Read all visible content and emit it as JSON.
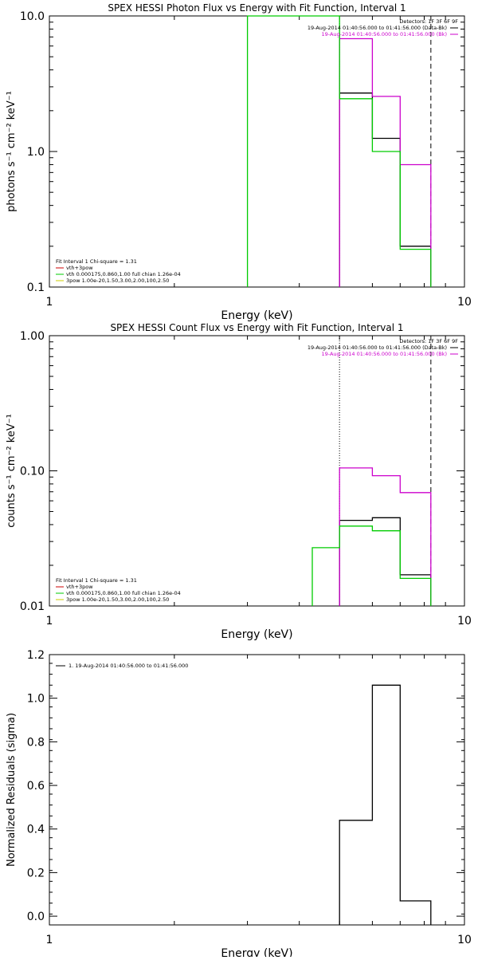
{
  "chart_data": [
    {
      "type": "line",
      "title": "SPEX HESSI Photon Flux vs Energy with Fit Function, Interval 1",
      "xlabel": "Energy (keV)",
      "ylabel": "photons s⁻¹ cm⁻² keV⁻¹",
      "xscale": "log",
      "yscale": "log",
      "xlim": [
        1,
        10
      ],
      "ylim": [
        0.1,
        10.0
      ],
      "xticks": [
        {
          "v": 1,
          "t": "1"
        },
        {
          "v": 10,
          "t": "10"
        }
      ],
      "yticks": [
        {
          "v": 0.1,
          "t": "0.1"
        },
        {
          "v": 1.0,
          "t": "1.0"
        },
        {
          "v": 10.0,
          "t": "10.0"
        }
      ],
      "legend_top_right": {
        "header": "Detectors: 1F 3F 6F 9F",
        "entries": [
          {
            "text": "19-Aug-2014 01:40:56.000 to 01:41:56.000 (Data-Bk)",
            "color": "#000000"
          },
          {
            "text": "19-Aug-2014 01:40:56.000 to 01:41:56.000 (Bk)",
            "color": "#cc00cc"
          }
        ]
      },
      "legend_bottom_left": {
        "header": "Fit Interval 1    Chi-square = 1.31",
        "entries": [
          {
            "text": "vth+3pow",
            "color": "#cc0000"
          },
          {
            "text": "vth 0.000175,0.860,1.00  full chian 1.26e-04",
            "color": "#00cc00"
          },
          {
            "text": "3pow 1.00e-20,1.50,3.00,2.00,100,2.50",
            "color": "#cccc00"
          }
        ]
      },
      "vlines": [
        {
          "x": 5.0,
          "style": "dotted",
          "color": "#000000"
        },
        {
          "x": 8.3,
          "style": "dashed",
          "color": "#000000"
        }
      ],
      "series": [
        {
          "name": "19-Aug-2014 01:40:56.000 to 01:41:56.000 (Data-Bk)",
          "color": "#000000",
          "bins": [
            [
              5.0,
              6.0,
              2.7
            ],
            [
              6.0,
              7.0,
              1.25
            ],
            [
              7.0,
              8.3,
              0.2
            ]
          ]
        },
        {
          "name": "19-Aug-2014 01:40:56.000 to 01:41:56.000 (Bk)",
          "color": "#cc00cc",
          "bins": [
            [
              5.0,
              6.0,
              6.8
            ],
            [
              6.0,
              7.0,
              2.55
            ],
            [
              7.0,
              8.3,
              0.8
            ]
          ]
        },
        {
          "name": "vth 0.000175,0.860,1.00  full chian 1.26e-04",
          "color": "#00cc00",
          "bins": [
            [
              3.0,
              5.0,
              10.0
            ],
            [
              5.0,
              6.0,
              2.45
            ],
            [
              6.0,
              7.0,
              1.0
            ],
            [
              7.0,
              8.3,
              0.19
            ]
          ]
        }
      ]
    },
    {
      "type": "line",
      "title": "SPEX HESSI Count Flux vs Energy with Fit Function, Interval 1",
      "xlabel": "Energy (keV)",
      "ylabel": "counts s⁻¹ cm⁻² keV⁻¹",
      "xscale": "log",
      "yscale": "log",
      "xlim": [
        1,
        10
      ],
      "ylim": [
        0.01,
        1.0
      ],
      "xticks": [
        {
          "v": 1,
          "t": "1"
        },
        {
          "v": 10,
          "t": "10"
        }
      ],
      "yticks": [
        {
          "v": 0.01,
          "t": "0.01"
        },
        {
          "v": 0.1,
          "t": "0.10"
        },
        {
          "v": 1.0,
          "t": "1.00"
        }
      ],
      "legend_top_right": {
        "header": "Detectors: 1F 3F 6F 9F",
        "entries": [
          {
            "text": "19-Aug-2014 01:40:56.000 to 01:41:56.000 (Data-Bk)",
            "color": "#000000"
          },
          {
            "text": "19-Aug-2014 01:40:56.000 to 01:41:56.000 (Bk)",
            "color": "#cc00cc"
          }
        ]
      },
      "legend_bottom_left": {
        "header": "Fit Interval 1    Chi-square = 1.31",
        "entries": [
          {
            "text": "vth+3pow",
            "color": "#cc0000"
          },
          {
            "text": "vth 0.000175,0.860,1.00  full chian 1.26e-04",
            "color": "#00cc00"
          },
          {
            "text": "3pow 1.00e-20,1.50,3.00,2.00,100,2.50",
            "color": "#cccc00"
          }
        ]
      },
      "vlines": [
        {
          "x": 5.0,
          "style": "dotted",
          "color": "#000000"
        },
        {
          "x": 8.3,
          "style": "dashed",
          "color": "#000000"
        }
      ],
      "series": [
        {
          "name": "19-Aug-2014 01:40:56.000 to 01:41:56.000 (Data-Bk)",
          "color": "#000000",
          "bins": [
            [
              5.0,
              6.0,
              0.043
            ],
            [
              6.0,
              7.0,
              0.045
            ],
            [
              7.0,
              8.3,
              0.017
            ]
          ]
        },
        {
          "name": "19-Aug-2014 01:40:56.000 to 01:41:56.000 (Bk)",
          "color": "#cc00cc",
          "bins": [
            [
              5.0,
              6.0,
              0.105
            ],
            [
              6.0,
              7.0,
              0.092
            ],
            [
              7.0,
              8.3,
              0.069
            ]
          ]
        },
        {
          "name": "vth 0.000175,0.860,1.00  full chian 1.26e-04",
          "color": "#00cc00",
          "bins": [
            [
              4.3,
              5.0,
              0.027
            ],
            [
              5.0,
              6.0,
              0.039
            ],
            [
              6.0,
              7.0,
              0.036
            ],
            [
              7.0,
              8.3,
              0.016
            ]
          ]
        }
      ]
    },
    {
      "type": "line",
      "title": "",
      "xlabel": "Energy (keV)",
      "ylabel": "Normalized Residuals (sigma)",
      "xscale": "log",
      "yscale": "linear",
      "xlim": [
        1,
        10
      ],
      "ylim": [
        -0.04,
        1.2
      ],
      "xticks": [
        {
          "v": 1,
          "t": "1"
        },
        {
          "v": 10,
          "t": "10"
        }
      ],
      "yticks": [
        {
          "v": 0.0,
          "t": "0.0"
        },
        {
          "v": 0.2,
          "t": "0.2"
        },
        {
          "v": 0.4,
          "t": "0.4"
        },
        {
          "v": 0.6,
          "t": "0.6"
        },
        {
          "v": 0.8,
          "t": "0.8"
        },
        {
          "v": 1.0,
          "t": "1.0"
        },
        {
          "v": 1.2,
          "t": "1.2"
        }
      ],
      "legend_top_left": {
        "entries": [
          {
            "text": "1. 19-Aug-2014 01:40:56.000 to 01:41:56.000",
            "color": "#000000"
          }
        ]
      },
      "series": [
        {
          "name": "1. 19-Aug-2014 01:40:56.000 to 01:41:56.000",
          "color": "#000000",
          "bins": [
            [
              5.0,
              6.0,
              0.44
            ],
            [
              6.0,
              7.0,
              1.06
            ],
            [
              7.0,
              8.3,
              0.07
            ]
          ]
        }
      ]
    }
  ]
}
